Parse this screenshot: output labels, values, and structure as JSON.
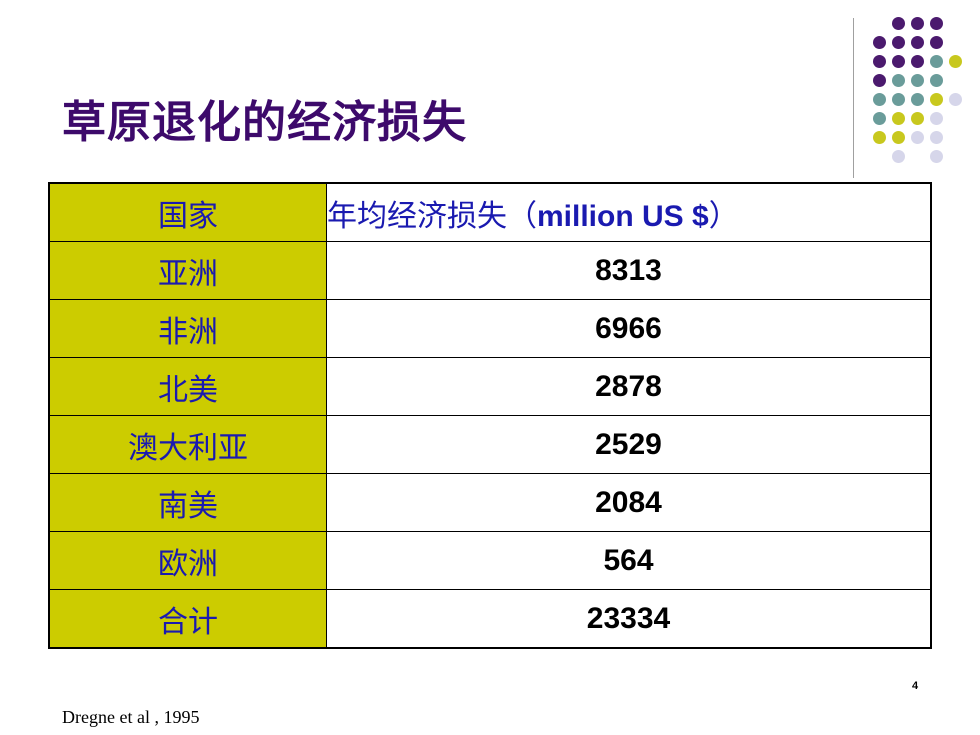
{
  "slide": {
    "title": "草原退化的经济损失",
    "page_number": "4",
    "source": "Dregne et al , 1995"
  },
  "table": {
    "header": {
      "country": "国家",
      "loss_cn": "年均经济损失（",
      "loss_unit": "million US $",
      "loss_close": "）"
    },
    "rows": [
      {
        "country": "亚洲",
        "value": "8313"
      },
      {
        "country": "非洲",
        "value": "6966"
      },
      {
        "country": "北美",
        "value": "2878"
      },
      {
        "country": "澳大利亚",
        "value": "2529"
      },
      {
        "country": "南美",
        "value": "2084"
      },
      {
        "country": "欧洲",
        "value": "564"
      },
      {
        "country": "合计",
        "value": "23334"
      }
    ]
  },
  "decoration": {
    "colors": {
      "purple": "#4b1a6e",
      "teal": "#6a9c9a",
      "olive": "#c8c81e",
      "lavender": "#d6d6ea"
    }
  }
}
